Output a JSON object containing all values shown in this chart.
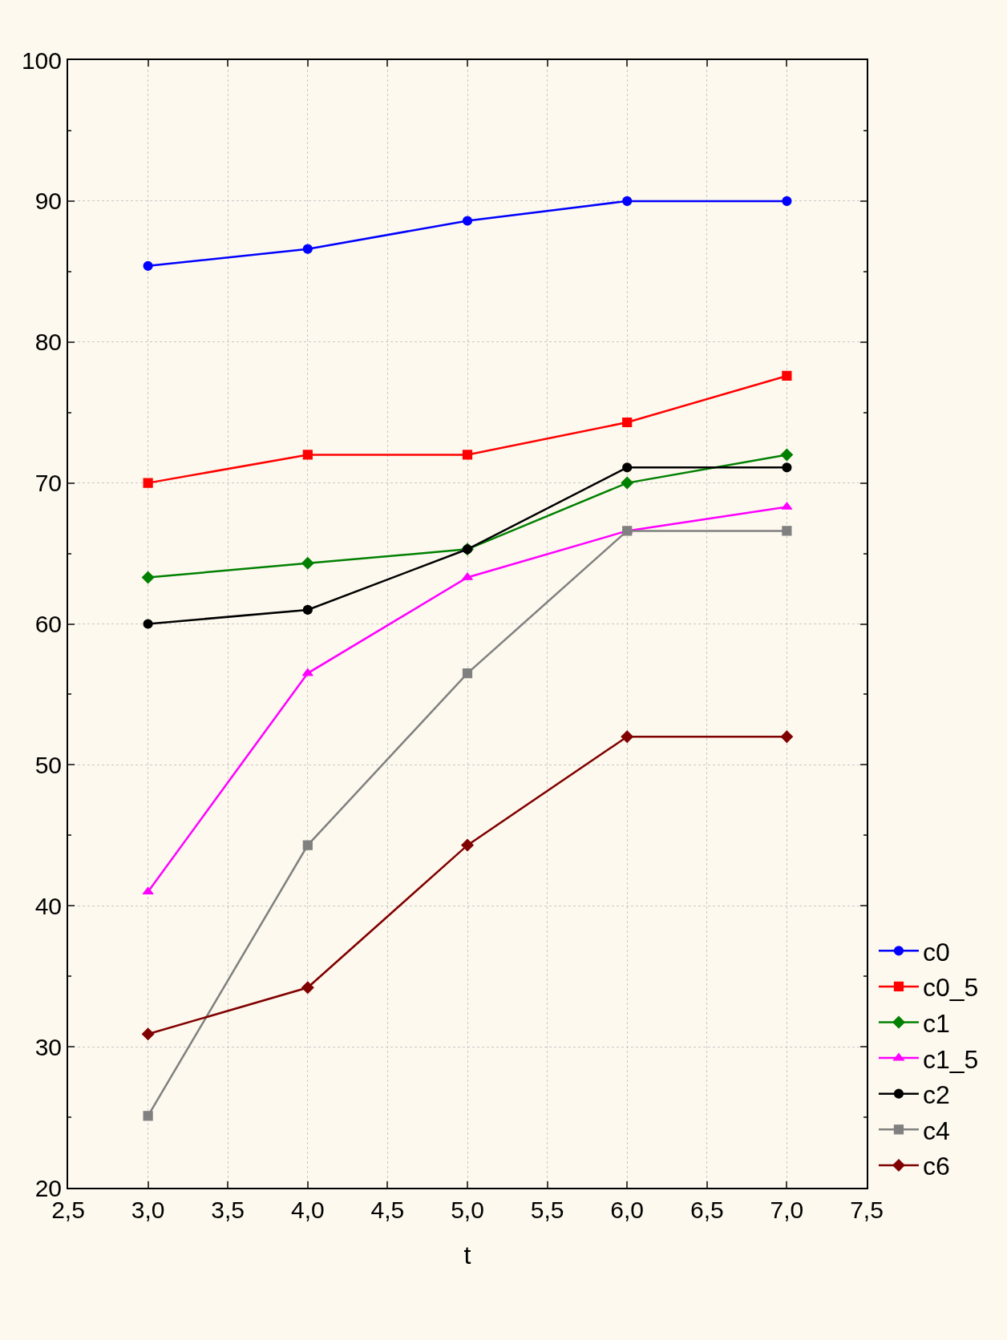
{
  "chart_data": {
    "type": "line",
    "xlabel": "t",
    "x": [
      3,
      4,
      5,
      6,
      7
    ],
    "series": [
      {
        "name": "c0",
        "color": "#0000ff",
        "marker": "circle",
        "values": [
          85.4,
          86.6,
          88.6,
          90,
          90
        ]
      },
      {
        "name": "c0_5",
        "color": "#ff0000",
        "marker": "square",
        "values": [
          70,
          72,
          72,
          74.3,
          77.6
        ]
      },
      {
        "name": "c1",
        "color": "#008000",
        "marker": "diamond",
        "values": [
          63.3,
          64.3,
          65.3,
          70,
          72
        ]
      },
      {
        "name": "c1_5",
        "color": "#ff00ff",
        "marker": "triangle",
        "values": [
          41,
          56.5,
          63.3,
          66.6,
          68.3
        ]
      },
      {
        "name": "c2",
        "color": "#000000",
        "marker": "circle",
        "values": [
          60,
          61,
          65.3,
          71.1,
          71.1
        ]
      },
      {
        "name": "c4",
        "color": "#808080",
        "marker": "square",
        "values": [
          25.1,
          44.3,
          56.5,
          66.6,
          66.6
        ]
      },
      {
        "name": "c6",
        "color": "#800000",
        "marker": "diamond",
        "values": [
          30.9,
          34.2,
          44.3,
          52,
          52
        ]
      }
    ],
    "xlim": [
      2.5,
      7.5
    ],
    "xticks": [
      {
        "value": 2.5,
        "label": "2,5"
      },
      {
        "value": 3,
        "label": "3,0"
      },
      {
        "value": 3.5,
        "label": "3,5"
      },
      {
        "value": 4,
        "label": "4,0"
      },
      {
        "value": 4.5,
        "label": "4,5"
      },
      {
        "value": 5,
        "label": "5,0"
      },
      {
        "value": 5.5,
        "label": "5,5"
      },
      {
        "value": 6,
        "label": "6,0"
      },
      {
        "value": 6.5,
        "label": "6,5"
      },
      {
        "value": 7,
        "label": "7,0"
      },
      {
        "value": 7.5,
        "label": "7,5"
      }
    ],
    "ylim": [
      20,
      100
    ],
    "yticks": [
      20,
      30,
      40,
      50,
      60,
      70,
      80,
      90,
      100
    ],
    "grid": true,
    "legend": "bottom right",
    "line_style": "solid"
  }
}
